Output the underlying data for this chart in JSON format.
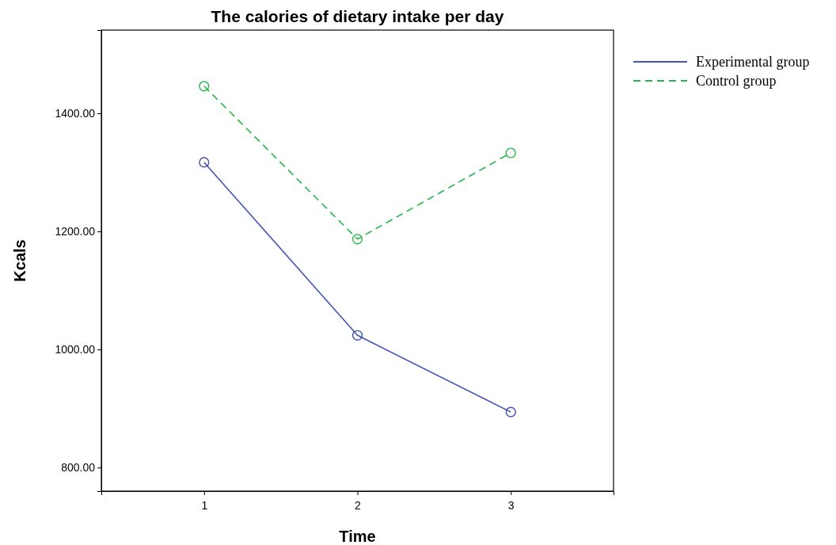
{
  "chart_data": {
    "type": "line",
    "title": "The calories of dietary intake per day",
    "xlabel": "Time",
    "ylabel": "Kcals",
    "x": [
      1,
      2,
      3
    ],
    "xlim": [
      0.33,
      3.67
    ],
    "xticks": [
      1,
      2,
      3
    ],
    "ylim": [
      760,
      1541
    ],
    "yticks": [
      {
        "value": 800,
        "label": "800.00"
      },
      {
        "value": 1000,
        "label": "1000.00"
      },
      {
        "value": 1200,
        "label": "1200.00"
      },
      {
        "value": 1400,
        "label": "1400.00"
      }
    ],
    "series": [
      {
        "name": "Experimental group",
        "color": "#4353b3",
        "values": [
          1317,
          1024,
          894
        ],
        "line_style": "solid"
      },
      {
        "name": "Control group",
        "color": "#22b845",
        "values": [
          1446,
          1187,
          1333
        ],
        "line_style": "dashed"
      }
    ],
    "marker": "circle",
    "grid": false,
    "legend": "top right"
  }
}
